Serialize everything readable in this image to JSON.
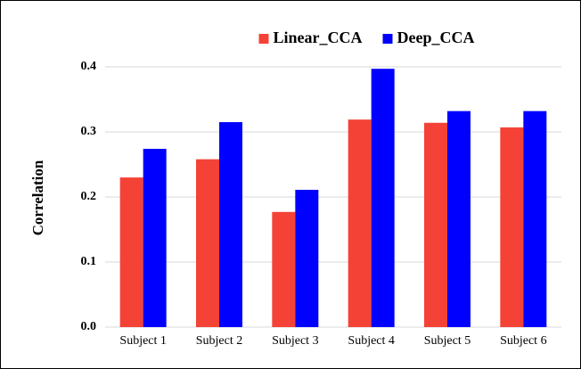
{
  "chart_data": {
    "type": "bar",
    "categories": [
      "Subject 1",
      "Subject 2",
      "Subject 3",
      "Subject 4",
      "Subject 5",
      "Subject 6"
    ],
    "series": [
      {
        "name": "Linear_CCA",
        "color": "#f44336",
        "values": [
          0.23,
          0.258,
          0.177,
          0.319,
          0.314,
          0.307
        ]
      },
      {
        "name": "Deep_CCA",
        "color": "#0000ff",
        "values": [
          0.274,
          0.315,
          0.211,
          0.397,
          0.332,
          0.332
        ]
      }
    ],
    "y_label": "Correlation",
    "ylim": [
      0,
      0.4
    ],
    "yticks": [
      {
        "value": 0,
        "label": "0.0"
      },
      0.1,
      0.2,
      0.3,
      0.4
    ],
    "grid": true,
    "legend": "top"
  }
}
